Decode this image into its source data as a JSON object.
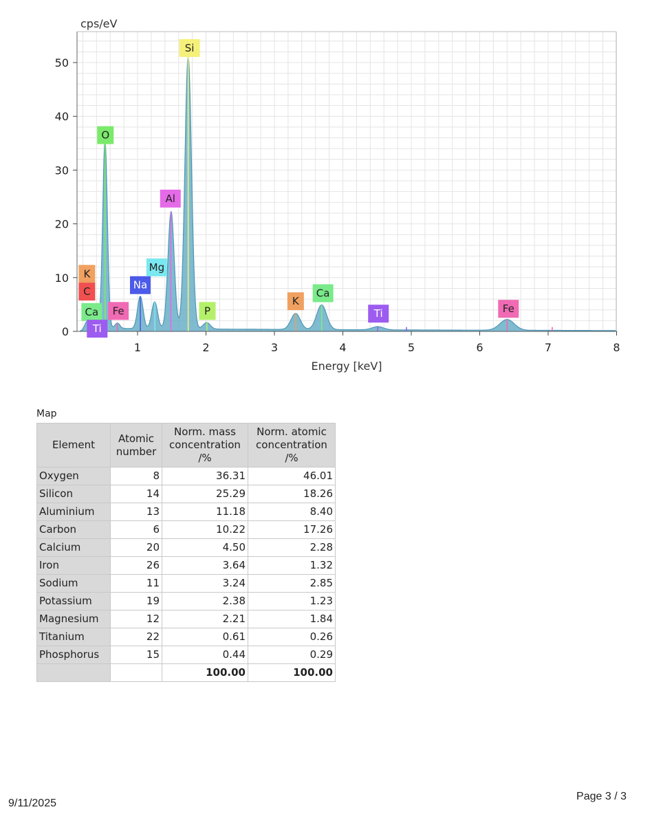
{
  "chart_data": {
    "type": "line",
    "title": "",
    "ylabel": "cps/eV",
    "xlabel": "Energy [keV]",
    "xlim": [
      0.1,
      8
    ],
    "ylim": [
      0,
      55
    ],
    "xticks": [
      1,
      2,
      3,
      4,
      5,
      6,
      7,
      8
    ],
    "yticks": [
      0,
      10,
      20,
      30,
      40,
      50
    ],
    "grid": true,
    "spectrum_fill": "#6aafc8",
    "spectrum_stroke": "#4f96b5",
    "background_level": 0.6,
    "peaks": [
      {
        "energy": 0.26,
        "height": 1.2
      },
      {
        "energy": 0.34,
        "height": 1.0
      },
      {
        "energy": 0.45,
        "height": 0.8
      },
      {
        "energy": 0.525,
        "height": 34.8
      },
      {
        "energy": 0.705,
        "height": 1.0
      },
      {
        "energy": 1.04,
        "height": 6.0
      },
      {
        "energy": 1.25,
        "height": 5.0
      },
      {
        "energy": 1.49,
        "height": 21.8
      },
      {
        "energy": 1.74,
        "height": 50.6
      },
      {
        "energy": 2.01,
        "height": 1.2
      },
      {
        "energy": 3.31,
        "height": 3.0
      },
      {
        "energy": 3.69,
        "height": 4.6
      },
      {
        "energy": 4.51,
        "height": 0.6
      },
      {
        "energy": 6.4,
        "height": 2.0
      }
    ],
    "element_labels": [
      {
        "label": "K",
        "energy": 0.26,
        "y": 10.7,
        "color": "#f0a060"
      },
      {
        "label": "C",
        "energy": 0.26,
        "y": 7.4,
        "color": "#f05050"
      },
      {
        "label": "Ca",
        "energy": 0.33,
        "y": 3.6,
        "color": "#7aea8a"
      },
      {
        "label": "Ti",
        "energy": 0.41,
        "y": 0.5,
        "color": "#9d5cf0"
      },
      {
        "label": "Fe",
        "energy": 0.72,
        "y": 3.8,
        "color": "#f06ab4"
      },
      {
        "label": "O",
        "energy": 0.53,
        "y": 36.5,
        "color": "#7aea6a"
      },
      {
        "label": "Na",
        "energy": 1.04,
        "y": 8.6,
        "color": "#4b5ae8"
      },
      {
        "label": "Mg",
        "energy": 1.28,
        "y": 11.9,
        "color": "#7ae8f0"
      },
      {
        "label": "Al",
        "energy": 1.48,
        "y": 24.7,
        "color": "#e46ae8"
      },
      {
        "label": "Si",
        "energy": 1.76,
        "y": 52.7,
        "color": "#f5f07a"
      },
      {
        "label": "P",
        "energy": 2.02,
        "y": 3.8,
        "color": "#b4f06a"
      },
      {
        "label": "K",
        "energy": 3.31,
        "y": 5.6,
        "color": "#f0a060"
      },
      {
        "label": "Ca",
        "energy": 3.71,
        "y": 7.1,
        "color": "#7aea8a"
      },
      {
        "label": "Ti",
        "energy": 4.52,
        "y": 3.3,
        "color": "#9d5cf0"
      },
      {
        "label": "Fe",
        "energy": 6.42,
        "y": 4.2,
        "color": "#f06ab4"
      }
    ],
    "marker_lines": [
      {
        "energy": 0.277,
        "color": "#f05050"
      },
      {
        "energy": 0.341,
        "color": "#7aea8a"
      },
      {
        "energy": 0.452,
        "color": "#9d5cf0"
      },
      {
        "energy": 0.525,
        "color": "#7aea6a"
      },
      {
        "energy": 0.705,
        "color": "#f06ab4"
      },
      {
        "energy": 1.041,
        "color": "#4b5ae8"
      },
      {
        "energy": 1.253,
        "color": "#7ae8f0"
      },
      {
        "energy": 1.486,
        "color": "#e46ae8"
      },
      {
        "energy": 1.74,
        "color": "#f5f07a"
      },
      {
        "energy": 2.013,
        "color": "#b4f06a"
      },
      {
        "energy": 3.312,
        "color": "#f0a060"
      },
      {
        "energy": 3.69,
        "color": "#7aea8a"
      },
      {
        "energy": 4.51,
        "color": "#9d5cf0"
      },
      {
        "energy": 4.93,
        "color": "#9d5cf0"
      },
      {
        "energy": 6.4,
        "color": "#f06ab4"
      },
      {
        "energy": 7.06,
        "color": "#f06ab4"
      }
    ]
  },
  "table": {
    "caption": "Map",
    "headers": {
      "element": "Element",
      "atomic_number": [
        "Atomic",
        "number"
      ],
      "mass": [
        "Norm. mass",
        "concentration",
        "/%"
      ],
      "atomic_conc": [
        "Norm. atomic",
        "concentration",
        "/%"
      ]
    },
    "rows": [
      {
        "element": "Oxygen",
        "atomic_number": "8",
        "mass": "36.31",
        "atomic": "46.01"
      },
      {
        "element": "Silicon",
        "atomic_number": "14",
        "mass": "25.29",
        "atomic": "18.26"
      },
      {
        "element": "Aluminium",
        "atomic_number": "13",
        "mass": "11.18",
        "atomic": "8.40"
      },
      {
        "element": "Carbon",
        "atomic_number": "6",
        "mass": "10.22",
        "atomic": "17.26"
      },
      {
        "element": "Calcium",
        "atomic_number": "20",
        "mass": "4.50",
        "atomic": "2.28"
      },
      {
        "element": "Iron",
        "atomic_number": "26",
        "mass": "3.64",
        "atomic": "1.32"
      },
      {
        "element": "Sodium",
        "atomic_number": "11",
        "mass": "3.24",
        "atomic": "2.85"
      },
      {
        "element": "Potassium",
        "atomic_number": "19",
        "mass": "2.38",
        "atomic": "1.23"
      },
      {
        "element": "Magnesium",
        "atomic_number": "12",
        "mass": "2.21",
        "atomic": "1.84"
      },
      {
        "element": "Titanium",
        "atomic_number": "22",
        "mass": "0.61",
        "atomic": "0.26"
      },
      {
        "element": "Phosphorus",
        "atomic_number": "15",
        "mass": "0.44",
        "atomic": "0.29"
      }
    ],
    "total": {
      "mass": "100.00",
      "atomic": "100.00"
    }
  },
  "footer": {
    "date": "9/11/2025",
    "page": "Page 3 / 3"
  }
}
